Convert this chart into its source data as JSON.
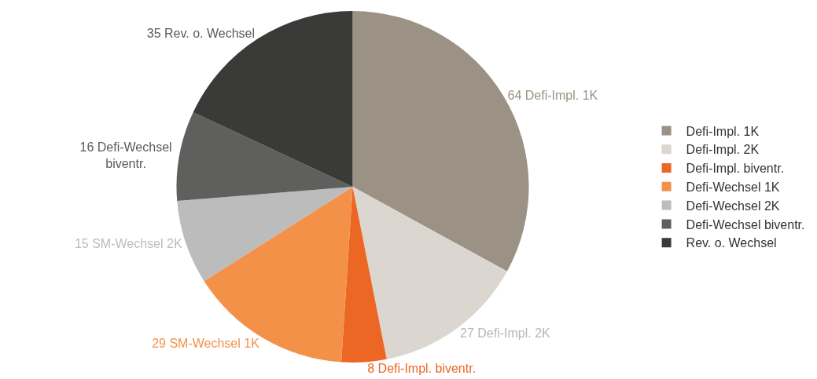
{
  "chart_data": {
    "type": "pie",
    "categories": [
      "Defi-Impl. 1K",
      "Defi-Impl. 2K",
      "Defi-Impl. biventr.",
      "Defi-Wechsel 1K",
      "Defi-Wechsel 2K",
      "Defi-Wechsel biventr.",
      "Rev. o. Wechsel"
    ],
    "values": [
      64,
      27,
      8,
      29,
      15,
      16,
      35
    ],
    "value_labels": [
      "64 Defi-Impl. 1K",
      "27 Defi-Impl. 2K",
      "8 Defi-Impl. biventr.",
      "29 SM-Wechsel 1K",
      "15 SM-Wechsel 2K",
      "16 Defi-Wechsel\nbiventr.",
      "35 Rev. o. Wechsel"
    ],
    "colors": [
      "#9b9184",
      "#dbd6cf",
      "#ec6624",
      "#f39149",
      "#bbbcbb",
      "#5f5f5e",
      "#3a3a39"
    ],
    "legend": "right"
  }
}
